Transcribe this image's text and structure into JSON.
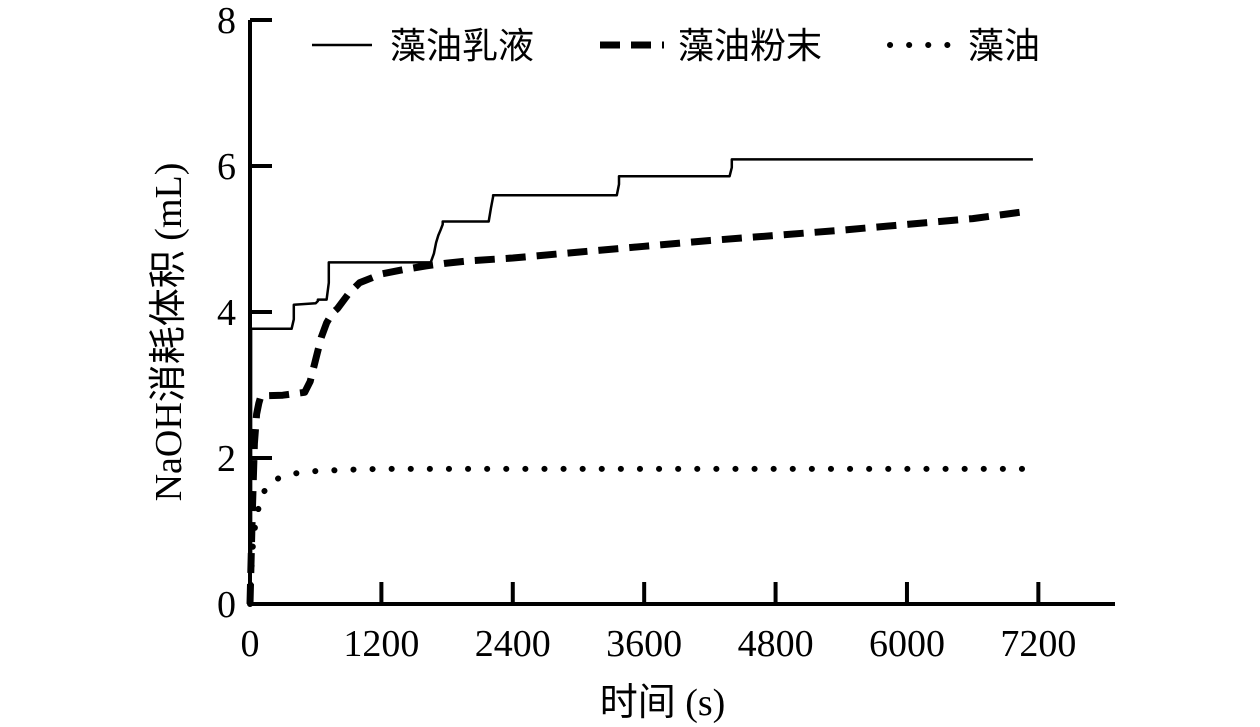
{
  "chart_data": {
    "type": "line",
    "title": "",
    "xlabel": "时间 (s)",
    "ylabel": "NaOH消耗体积 (mL)",
    "xlim": [
      0,
      7900
    ],
    "ylim": [
      0,
      8
    ],
    "x_ticks": [
      0,
      1200,
      2400,
      3600,
      4800,
      6000,
      7200
    ],
    "x_tick_labels": [
      "0",
      "1200",
      "2400",
      "3600",
      "4800",
      "6000",
      "7200"
    ],
    "y_ticks": [
      0,
      2,
      4,
      6,
      8
    ],
    "y_tick_labels": [
      "0",
      "2",
      "4",
      "6",
      "8"
    ],
    "legend_position": "top",
    "grid": false,
    "series": [
      {
        "name": "藻油乳液",
        "style": "solid",
        "color": "#000000",
        "x": [
          0,
          10,
          10,
          380,
          400,
          400,
          600,
          620,
          620,
          700,
          720,
          720,
          1650,
          1680,
          1700,
          1720,
          1740,
          1760,
          1760,
          2180,
          2200,
          2220,
          2220,
          3350,
          3370,
          3370,
          4380,
          4400,
          4400,
          7150
        ],
        "y": [
          0,
          0.6,
          3.77,
          3.77,
          3.9,
          4.1,
          4.12,
          4.15,
          4.17,
          4.17,
          4.4,
          4.68,
          4.68,
          4.8,
          4.95,
          5.05,
          5.12,
          5.2,
          5.24,
          5.24,
          5.42,
          5.58,
          5.6,
          5.6,
          5.75,
          5.86,
          5.86,
          5.98,
          6.09,
          6.09
        ]
      },
      {
        "name": "藻油粉末",
        "style": "dashed",
        "color": "#000000",
        "x": [
          0,
          20,
          40,
          60,
          80,
          100,
          300,
          500,
          550,
          600,
          650,
          700,
          750,
          800,
          900,
          1000,
          1200,
          1400,
          1600,
          1800,
          2000,
          2400,
          3000,
          3600,
          4200,
          4800,
          5400,
          6000,
          6600,
          7100
        ],
        "y": [
          0,
          1.2,
          2.2,
          2.6,
          2.75,
          2.85,
          2.86,
          2.9,
          3.05,
          3.35,
          3.65,
          3.85,
          3.98,
          4.05,
          4.25,
          4.4,
          4.52,
          4.58,
          4.63,
          4.67,
          4.7,
          4.74,
          4.82,
          4.9,
          4.98,
          5.05,
          5.12,
          5.2,
          5.28,
          5.38
        ]
      },
      {
        "name": "藻油",
        "style": "dotted",
        "color": "#000000",
        "x": [
          0,
          10,
          30,
          60,
          100,
          150,
          200,
          300,
          450,
          600,
          900,
          1200,
          2000,
          3000,
          4000,
          5000,
          6000,
          7100
        ],
        "y": [
          0,
          0.4,
          0.9,
          1.2,
          1.45,
          1.6,
          1.68,
          1.75,
          1.8,
          1.82,
          1.84,
          1.85,
          1.85,
          1.85,
          1.85,
          1.85,
          1.85,
          1.85
        ]
      }
    ]
  }
}
